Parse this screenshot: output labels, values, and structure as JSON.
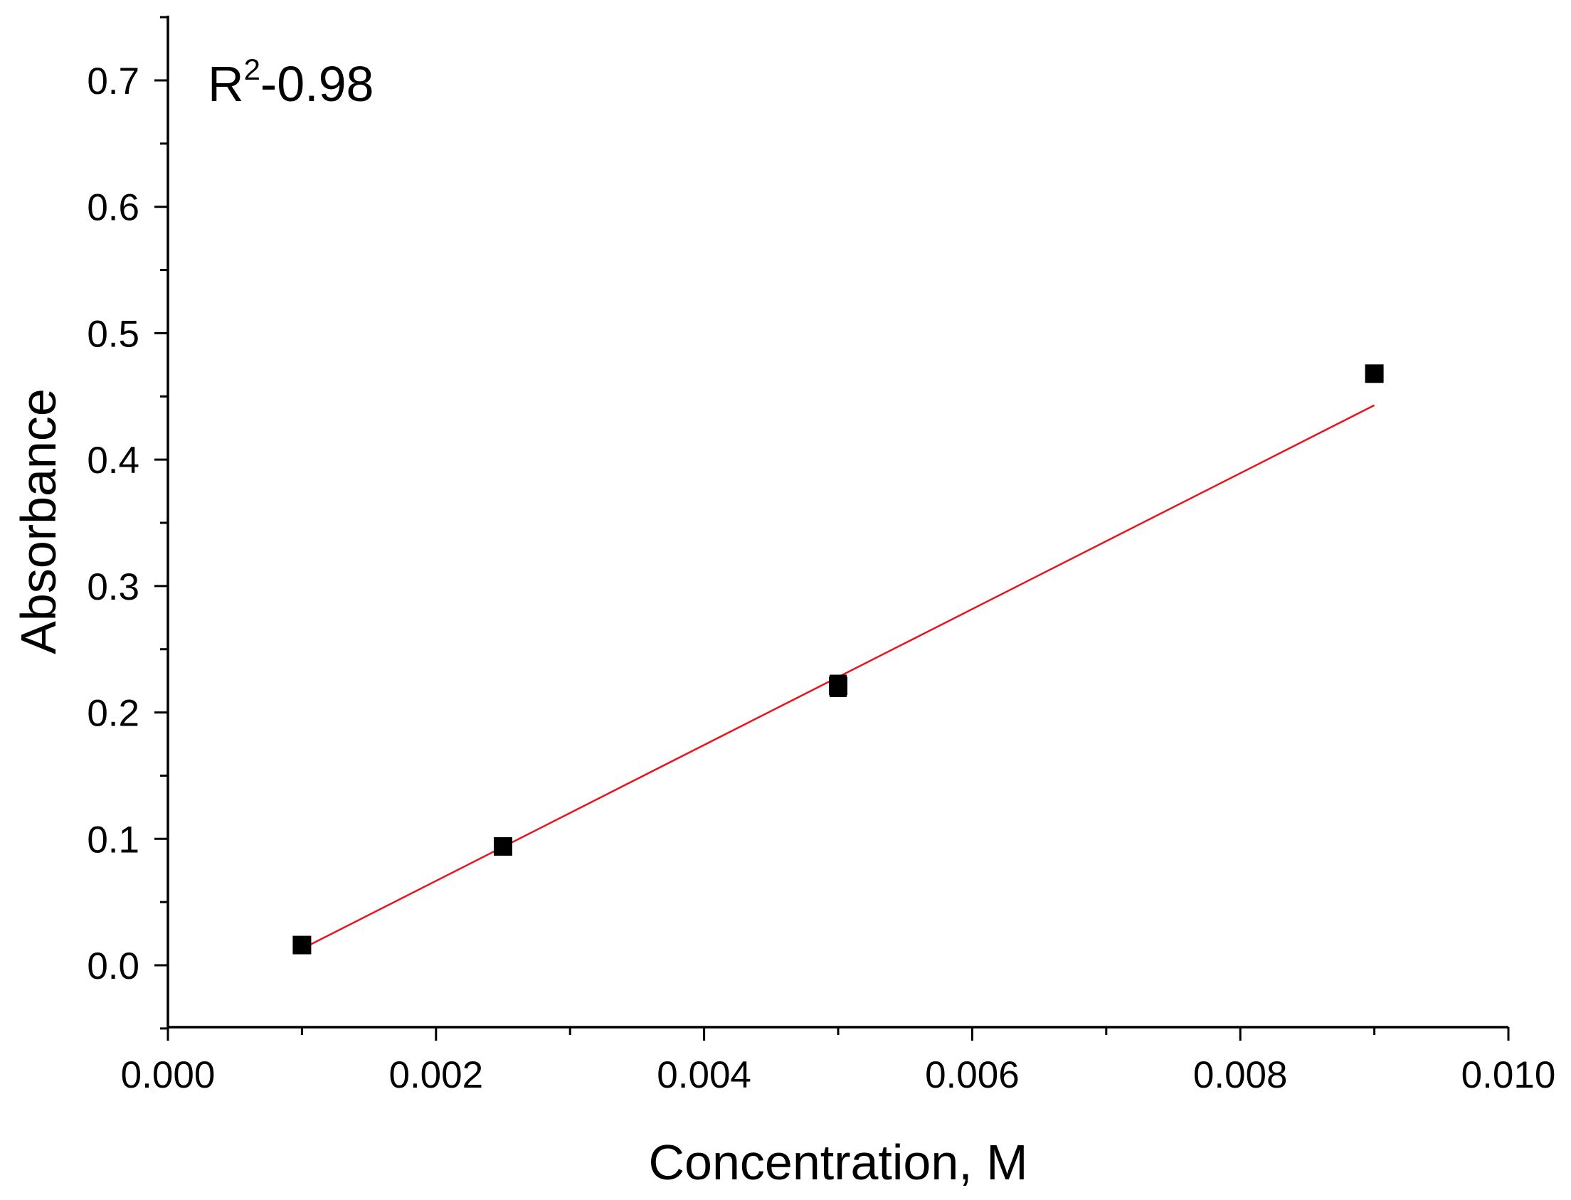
{
  "chart_data": {
    "type": "scatter",
    "title": "",
    "xlabel": "Concentration, M",
    "ylabel": "Absorbance",
    "xlim": [
      0.0,
      0.01
    ],
    "ylim": [
      -0.05,
      0.75
    ],
    "x_ticks": [
      "0.000",
      "0.002",
      "0.004",
      "0.006",
      "0.008",
      "0.010"
    ],
    "x_tick_values": [
      0.0,
      0.002,
      0.004,
      0.006,
      0.008,
      0.01
    ],
    "y_ticks": [
      "0.0",
      "0.1",
      "0.2",
      "0.3",
      "0.4",
      "0.5",
      "0.6",
      "0.7"
    ],
    "y_tick_values": [
      0.0,
      0.1,
      0.2,
      0.3,
      0.4,
      0.5,
      0.6,
      0.7
    ],
    "grid": false,
    "series": [
      {
        "x": [
          0.001,
          0.0025,
          0.005,
          0.009
        ],
        "y": [
          0.016,
          0.094,
          0.221,
          0.468
        ],
        "y_err": [
          0.004,
          0.005,
          0.008,
          0.006
        ],
        "marker": "square",
        "color": "#000000"
      }
    ],
    "fit_line": {
      "x": [
        0.001,
        0.009
      ],
      "y": [
        0.013,
        0.443
      ],
      "color": "#e8141e"
    },
    "annotation": {
      "base": "R",
      "sup": "2",
      "rest": "-0.98"
    }
  }
}
